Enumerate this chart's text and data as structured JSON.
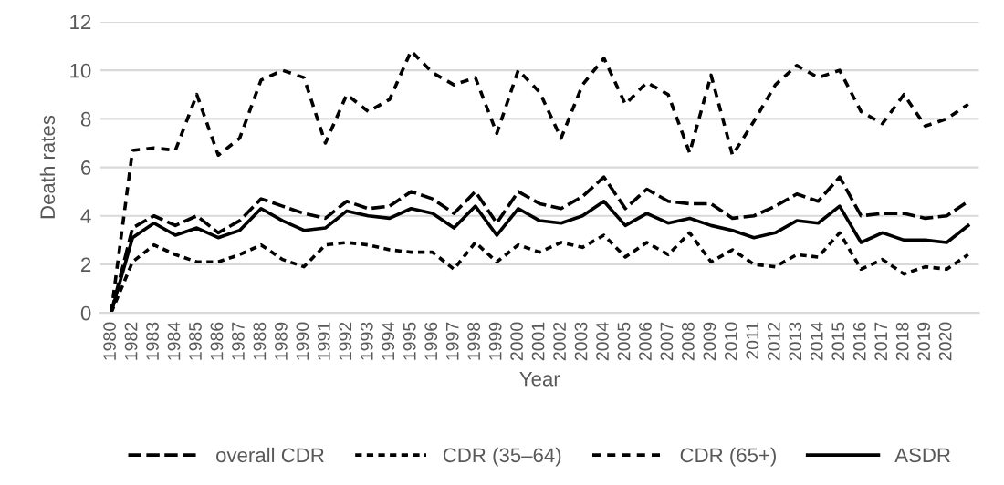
{
  "chart_data": {
    "type": "line",
    "xlabel": "Year",
    "ylabel": "Death rates",
    "categories": [
      "1980",
      "1982",
      "1983",
      "1984",
      "1985",
      "1986",
      "1987",
      "1988",
      "1989",
      "1990",
      "1991",
      "1992",
      "1993",
      "1994",
      "1995",
      "1996",
      "1997",
      "1998",
      "1999",
      "2000",
      "2001",
      "2002",
      "2003",
      "2004",
      "2005",
      "2006",
      "2007",
      "2008",
      "2009",
      "2010",
      "2011",
      "2012",
      "2013",
      "2014",
      "2015",
      "2016",
      "2017",
      "2018",
      "2019",
      "2020",
      null
    ],
    "series": [
      {
        "name": "overall CDR",
        "color": "#000000",
        "line_style": "dashed",
        "values": [
          0,
          3.5,
          4.0,
          3.6,
          4.0,
          3.3,
          3.8,
          4.7,
          4.4,
          4.1,
          3.9,
          4.6,
          4.3,
          4.4,
          5.0,
          4.7,
          4.1,
          5.0,
          3.7,
          5.0,
          4.5,
          4.3,
          4.8,
          5.6,
          4.3,
          5.1,
          4.6,
          4.5,
          4.5,
          3.9,
          4.0,
          4.4,
          4.9,
          4.6,
          5.6,
          4.0,
          4.1,
          4.1,
          3.9,
          4.0,
          4.6
        ]
      },
      {
        "name": "CDR (35–64)",
        "color": "#000000",
        "line_style": "dotted",
        "values": [
          0,
          2.1,
          2.8,
          2.4,
          2.1,
          2.1,
          2.4,
          2.8,
          2.2,
          1.9,
          2.8,
          2.9,
          2.8,
          2.6,
          2.5,
          2.5,
          1.8,
          2.9,
          2.1,
          2.8,
          2.5,
          2.9,
          2.7,
          3.2,
          2.3,
          2.9,
          2.4,
          3.3,
          2.1,
          2.6,
          2.0,
          1.9,
          2.4,
          2.3,
          3.3,
          1.8,
          2.2,
          1.6,
          1.9,
          1.8,
          2.4
        ]
      },
      {
        "name": "CDR (65+)",
        "color": "#000000",
        "line_style": "dashed",
        "values": [
          0,
          6.7,
          6.8,
          6.7,
          9.0,
          6.5,
          7.2,
          9.6,
          10.0,
          9.7,
          7.0,
          9.0,
          8.3,
          8.8,
          10.8,
          9.9,
          9.4,
          9.7,
          7.4,
          10.0,
          9.1,
          7.2,
          9.4,
          10.5,
          8.6,
          9.5,
          9.0,
          6.6,
          9.8,
          6.5,
          7.9,
          9.4,
          10.2,
          9.7,
          10.0,
          8.3,
          7.8,
          9.0,
          7.7,
          8.0,
          8.6
        ]
      },
      {
        "name": "ASDR",
        "color": "#000000",
        "line_style": "solid",
        "values": [
          0,
          3.1,
          3.7,
          3.2,
          3.5,
          3.1,
          3.4,
          4.3,
          3.8,
          3.4,
          3.5,
          4.2,
          4.0,
          3.9,
          4.3,
          4.1,
          3.5,
          4.4,
          3.2,
          4.3,
          3.8,
          3.7,
          4.0,
          4.6,
          3.6,
          4.1,
          3.7,
          3.9,
          3.6,
          3.4,
          3.1,
          3.3,
          3.8,
          3.7,
          4.4,
          2.9,
          3.3,
          3.0,
          3.0,
          2.9,
          3.6
        ]
      }
    ],
    "ylim": [
      0,
      12
    ],
    "yticks": [
      0,
      2,
      4,
      6,
      8,
      10,
      12
    ],
    "grid": "y",
    "legend": "bottom",
    "marker": "none"
  }
}
